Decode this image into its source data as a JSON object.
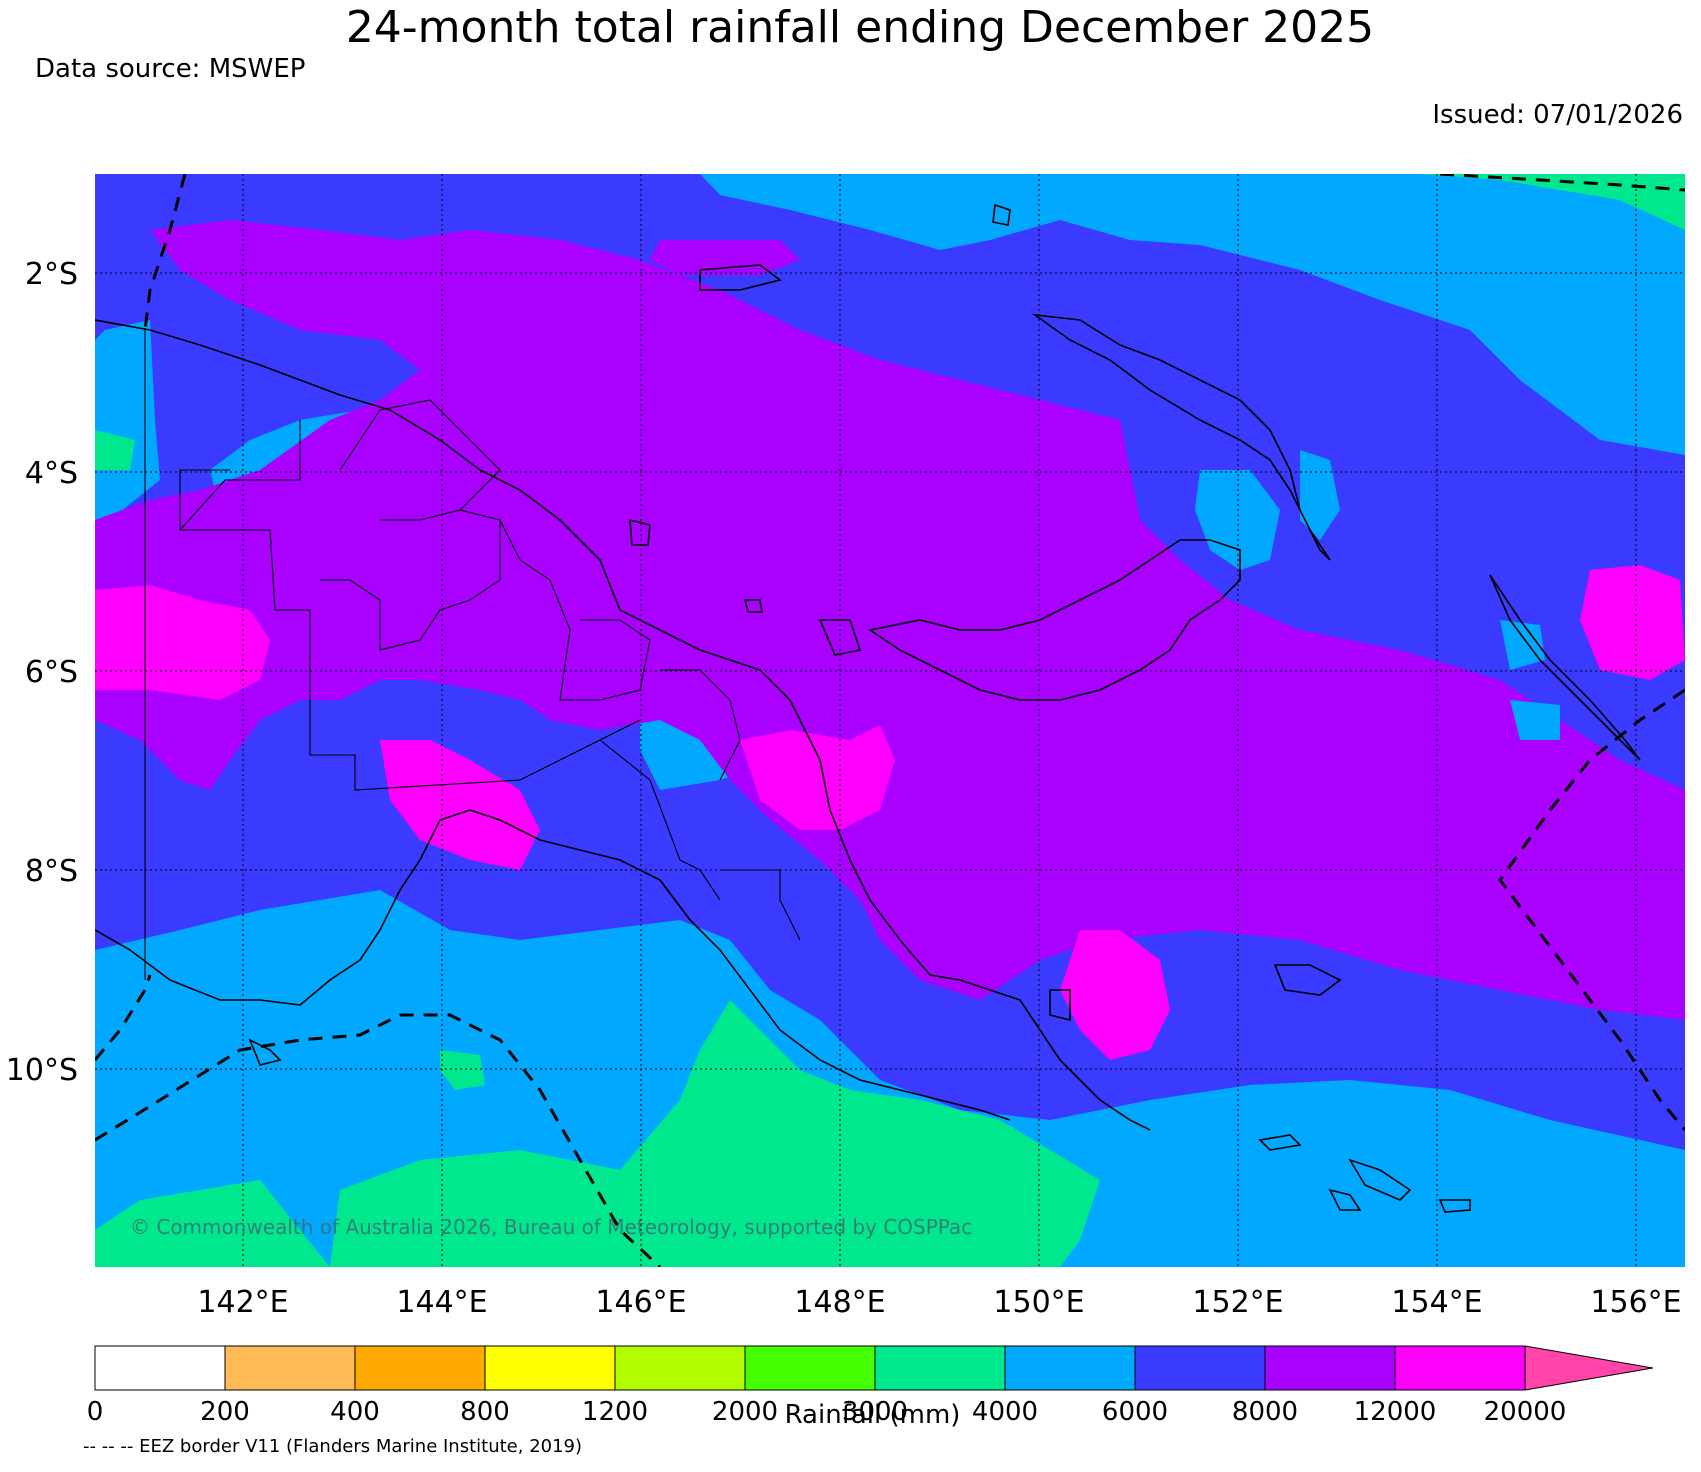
{
  "header": {
    "title": "24-month total rainfall ending December 2025",
    "source": "Data source: MSWEP",
    "issued": "Issued: 07/01/2026"
  },
  "map": {
    "lon_range": [
      140.5,
      156.5
    ],
    "lat_range": [
      -12,
      -1
    ],
    "lon_ticks": [
      "142°E",
      "144°E",
      "146°E",
      "148°E",
      "150°E",
      "152°E",
      "154°E",
      "156°E"
    ],
    "lat_ticks": [
      "2°S",
      "4°S",
      "6°S",
      "8°S",
      "10°S"
    ],
    "copyright": "© Commonwealth of Australia 2026, Bureau of Meteorology, supported by COSPPac"
  },
  "colorbar": {
    "label": "Rainfall (mm)",
    "ticks": [
      "0",
      "200",
      "400",
      "800",
      "1200",
      "2000",
      "3000",
      "4000",
      "6000",
      "8000",
      "12000",
      "20000"
    ],
    "colors": [
      "#ffffff",
      "#ffbb55",
      "#ffaa00",
      "#ffff00",
      "#b3ff00",
      "#44ff00",
      "#00e88e",
      "#00a9ff",
      "#3b3bff",
      "#aa00ff",
      "#ff00ff"
    ],
    "extend_color": "#ff44aa"
  },
  "legend_note": "-- -- -- EEZ border V11 (Flanders Marine Institute, 2019)"
}
